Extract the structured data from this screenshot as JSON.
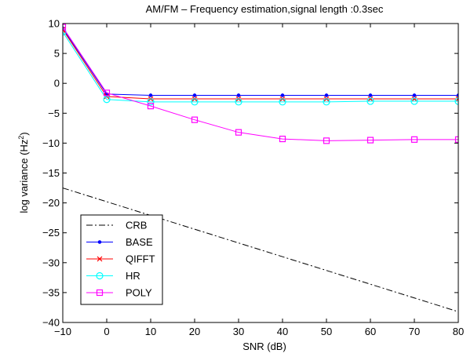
{
  "chart_data": {
    "type": "line",
    "title": "AM/FM – Frequency estimation,signal length :0.3sec",
    "xlabel": "SNR (dB)",
    "ylabel_main": "log variance (Hz",
    "ylabel_sup": "2",
    "ylabel_close": ")",
    "xlim": [
      -10,
      80
    ],
    "ylim": [
      -40,
      10
    ],
    "xticks": [
      -10,
      0,
      10,
      20,
      30,
      40,
      50,
      60,
      70,
      80
    ],
    "yticks": [
      -40,
      -35,
      -30,
      -25,
      -20,
      -15,
      -10,
      -5,
      0,
      5,
      10
    ],
    "xtick_labels": [
      "−10",
      "0",
      "10",
      "20",
      "30",
      "40",
      "50",
      "60",
      "70",
      "80"
    ],
    "ytick_labels": [
      "−40",
      "−35",
      "−30",
      "−25",
      "−20",
      "−15",
      "−10",
      "−5",
      "0",
      "5",
      "10"
    ],
    "legend_position": "bottom-left",
    "grid": false,
    "series": [
      {
        "name": "CRB",
        "color": "#000000",
        "style": "dash-dot",
        "marker": "none",
        "x": [
          -10,
          80
        ],
        "y": [
          -17.5,
          -38.2
        ]
      },
      {
        "name": "BASE",
        "color": "#0000ff",
        "style": "solid",
        "marker": "dot",
        "x": [
          -10,
          0,
          10,
          20,
          30,
          40,
          50,
          60,
          70,
          80
        ],
        "y": [
          9.2,
          -1.8,
          -2.0,
          -2.0,
          -2.0,
          -2.0,
          -2.0,
          -2.0,
          -2.0,
          -2.0
        ]
      },
      {
        "name": "QIFFT",
        "color": "#ff0000",
        "style": "solid",
        "marker": "x",
        "x": [
          -10,
          0,
          10,
          20,
          30,
          40,
          50,
          60,
          70,
          80
        ],
        "y": [
          9.0,
          -2.2,
          -2.6,
          -2.6,
          -2.6,
          -2.6,
          -2.6,
          -2.6,
          -2.6,
          -2.6
        ]
      },
      {
        "name": "HR",
        "color": "#00ffff",
        "style": "solid",
        "marker": "circle",
        "x": [
          -10,
          0,
          10,
          20,
          30,
          40,
          50,
          60,
          70,
          80
        ],
        "y": [
          8.6,
          -2.7,
          -3.1,
          -3.1,
          -3.1,
          -3.1,
          -3.1,
          -3.0,
          -3.0,
          -3.0
        ]
      },
      {
        "name": "POLY",
        "color": "#ff00ff",
        "style": "solid",
        "marker": "square",
        "x": [
          -10,
          0,
          10,
          20,
          30,
          40,
          50,
          60,
          70,
          80
        ],
        "y": [
          9.4,
          -1.6,
          -3.8,
          -6.1,
          -8.2,
          -9.3,
          -9.6,
          -9.5,
          -9.4,
          -9.4
        ]
      }
    ]
  }
}
